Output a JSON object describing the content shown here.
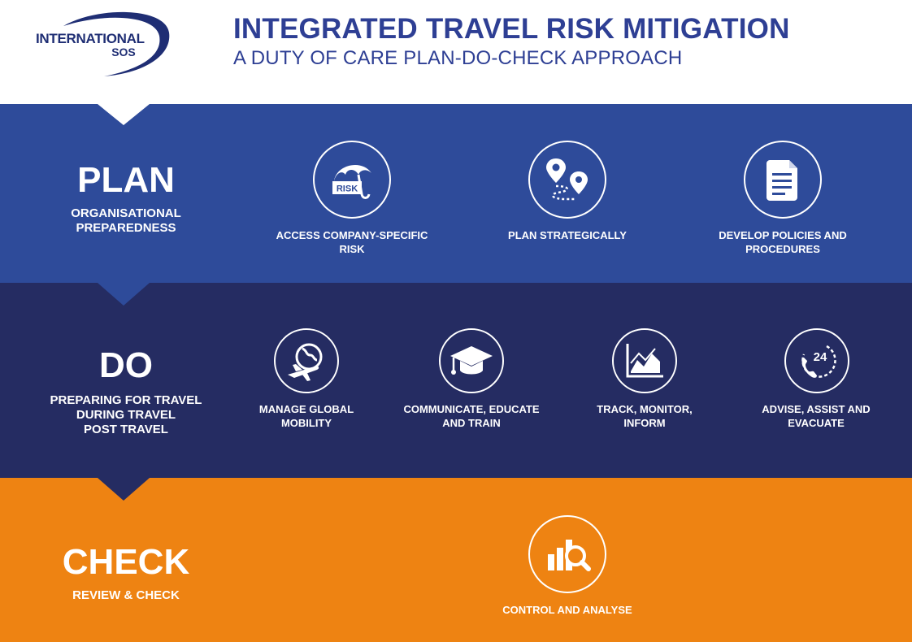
{
  "header": {
    "logo_line1": "INTERNATIONAL",
    "logo_line2": "SOS",
    "title": "INTEGRATED TRAVEL RISK MITIGATION",
    "subtitle": "A DUTY OF CARE PLAN-DO-CHECK APPROACH"
  },
  "colors": {
    "plan_band": "#2e4b9a",
    "do_band": "#252c62",
    "check_band": "#ee8312",
    "title_text": "#2e3f94"
  },
  "plan": {
    "title": "PLAN",
    "sub_lines": [
      "ORGANISATIONAL",
      "PREPAREDNESS"
    ],
    "items": [
      {
        "icon": "risk-umbrella-icon",
        "icon_text": "RISK",
        "label_lines": [
          "ACCESS COMPANY-SPECIFIC",
          "RISK"
        ]
      },
      {
        "icon": "route-pins-icon",
        "label_lines": [
          "PLAN STRATEGICALLY"
        ]
      },
      {
        "icon": "document-icon",
        "label_lines": [
          "DEVELOP POLICIES AND",
          "PROCEDURES"
        ]
      }
    ]
  },
  "do": {
    "title": "DO",
    "sub_lines": [
      "PREPARING FOR TRAVEL",
      "DURING TRAVEL",
      "POST TRAVEL"
    ],
    "items": [
      {
        "icon": "globe-plane-icon",
        "label_lines": [
          "MANAGE GLOBAL",
          "MOBILITY"
        ]
      },
      {
        "icon": "graduation-cap-icon",
        "label_lines": [
          "COMMUNICATE, EDUCATE",
          "AND TRAIN"
        ]
      },
      {
        "icon": "line-chart-icon",
        "label_lines": [
          "TRACK, MONITOR,",
          "INFORM"
        ]
      },
      {
        "icon": "phone-24-icon",
        "icon_text": "24",
        "label_lines": [
          "ADVISE, ASSIST AND",
          "EVACUATE"
        ]
      }
    ]
  },
  "check": {
    "title": "CHECK",
    "sub": "REVIEW & CHECK",
    "items": [
      {
        "icon": "chart-magnifier-icon",
        "label_lines": [
          "CONTROL AND ANALYSE"
        ]
      }
    ]
  }
}
